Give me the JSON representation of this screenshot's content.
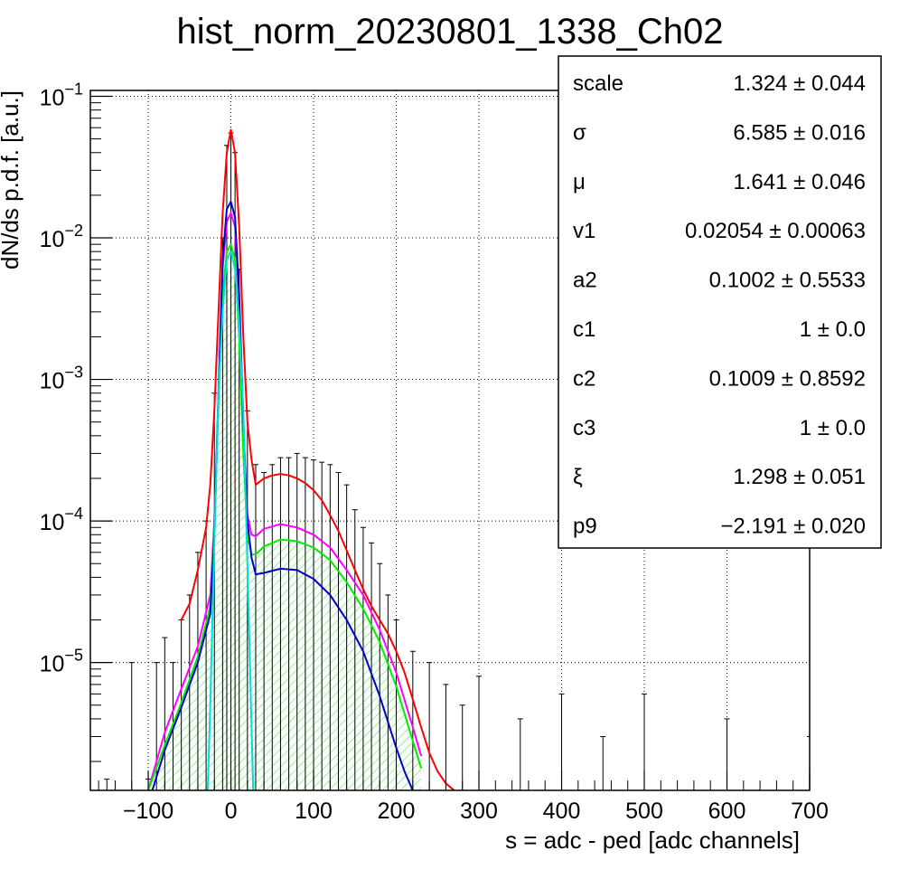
{
  "chart_data": {
    "type": "line",
    "title": "hist_norm_20230801_1338_Ch02",
    "xlabel": "s = adc - ped [adc channels]",
    "ylabel": "dN/ds p.d.f. [a.u.]",
    "xlim": [
      -170,
      700
    ],
    "ylim": [
      1.25e-06,
      0.11
    ],
    "yscale": "log",
    "grid": true,
    "x_ticks": [
      -100,
      0,
      100,
      200,
      300,
      400,
      500,
      600,
      700
    ],
    "x_tick_labels": [
      "−100",
      "0",
      "100",
      "200",
      "300",
      "400",
      "500",
      "600",
      "700"
    ],
    "y_ticks": [
      {
        "value": 0.1,
        "mantissa": "10",
        "exponent": "−1"
      },
      {
        "value": 0.01,
        "mantissa": "10",
        "exponent": "−2"
      },
      {
        "value": 0.001,
        "mantissa": "10",
        "exponent": "−3"
      },
      {
        "value": 0.0001,
        "mantissa": "10",
        "exponent": "−4"
      },
      {
        "value": 1e-05,
        "mantissa": "10",
        "exponent": "−5"
      }
    ],
    "series": [
      {
        "color": "#000000",
        "style": "histogram",
        "x": [
          -150,
          -120,
          -100,
          -90,
          -80,
          -70,
          -60,
          -50,
          -40,
          -30,
          -20,
          -10,
          -5,
          0,
          5,
          10,
          20,
          30,
          40,
          50,
          60,
          70,
          80,
          90,
          100,
          110,
          120,
          130,
          140,
          150,
          160,
          170,
          180,
          190,
          200,
          220,
          240,
          260,
          280,
          300,
          350,
          400,
          450,
          500,
          600,
          700
        ],
        "y": [
          1.5e-06,
          1e-05,
          1.5e-06,
          1e-05,
          1.5e-05,
          1e-05,
          2e-05,
          3e-05,
          6e-05,
          0.0001,
          0.0008,
          0.01,
          0.045,
          0.055,
          0.04,
          0.006,
          0.0006,
          0.00025,
          0.00022,
          0.00025,
          0.00028,
          0.00028,
          0.0003,
          0.00028,
          0.00027,
          0.00026,
          0.00025,
          0.00022,
          0.00018,
          0.00012,
          9e-05,
          7e-05,
          5e-05,
          3e-05,
          2e-05,
          1.2e-05,
          1e-05,
          7e-06,
          5e-06,
          8e-06,
          4e-06,
          6e-06,
          3e-06,
          6e-06,
          4e-06,
          3e-06
        ]
      },
      {
        "color": "#ff0000",
        "style": "line",
        "x": [
          -60,
          -50,
          -40,
          -30,
          -25,
          -20,
          -15,
          -10,
          -5,
          0,
          5,
          10,
          15,
          20,
          25,
          30,
          40,
          50,
          60,
          70,
          80,
          90,
          100,
          110,
          120,
          130,
          140,
          150,
          160,
          170,
          180,
          190,
          200,
          210,
          220,
          230,
          240,
          250,
          260,
          270
        ],
        "y": [
          2e-05,
          2.6e-05,
          4.5e-05,
          9e-05,
          0.00018,
          0.0006,
          0.003,
          0.015,
          0.04,
          0.058,
          0.04,
          0.012,
          0.002,
          0.0005,
          0.00027,
          0.00018,
          0.0002,
          0.00021,
          0.000215,
          0.00021,
          0.0002,
          0.000185,
          0.000165,
          0.00014,
          0.00011,
          8.5e-05,
          6.2e-05,
          4.5e-05,
          3.3e-05,
          2.5e-05,
          2e-05,
          1.6e-05,
          1.2e-05,
          8.5e-06,
          5.5e-06,
          3.5e-06,
          2.3e-06,
          1.7e-06,
          1.4e-06,
          1.2e-06
        ]
      },
      {
        "color": "#ff00ff",
        "style": "line",
        "x": [
          -100,
          -80,
          -60,
          -40,
          -25,
          -20,
          -15,
          -10,
          -5,
          0,
          5,
          10,
          15,
          20,
          25,
          30,
          40,
          60,
          80,
          100,
          120,
          140,
          160,
          180,
          200,
          220,
          230
        ],
        "y": [
          1.2e-06,
          3.2e-06,
          6.5e-06,
          1.3e-05,
          3e-05,
          0.0001,
          0.0008,
          0.006,
          0.013,
          0.015,
          0.012,
          0.0035,
          0.0004,
          0.00011,
          8e-05,
          7.8e-05,
          8.8e-05,
          9.5e-05,
          9e-05,
          8e-05,
          6.5e-05,
          4.5e-05,
          3e-05,
          1.7e-05,
          8.5e-06,
          3.5e-06,
          2.2e-06
        ]
      },
      {
        "color": "#00ee00",
        "style": "line",
        "x": [
          -100,
          -80,
          -60,
          -40,
          -25,
          -20,
          -15,
          -10,
          -5,
          0,
          5,
          10,
          15,
          20,
          25,
          30,
          40,
          60,
          80,
          100,
          120,
          140,
          160,
          180,
          200,
          220,
          230
        ],
        "y": [
          1.1e-06,
          2.6e-06,
          5.2e-06,
          1.1e-05,
          2.5e-05,
          9e-05,
          0.0007,
          0.004,
          0.008,
          0.009,
          0.007,
          0.002,
          0.0003,
          8e-05,
          5.8e-05,
          5.8e-05,
          6.6e-05,
          7.4e-05,
          7.2e-05,
          6.5e-05,
          5.3e-05,
          3.7e-05,
          2.4e-05,
          1.4e-05,
          6.8e-06,
          2.8e-06,
          1.8e-06
        ]
      },
      {
        "color": "#0000cc",
        "style": "line",
        "x": [
          -95,
          -80,
          -60,
          -40,
          -25,
          -20,
          -15,
          -10,
          -5,
          0,
          5,
          10,
          15,
          20,
          25,
          30,
          40,
          60,
          80,
          100,
          120,
          140,
          160,
          180,
          200,
          210,
          220
        ],
        "y": [
          1.2e-06,
          2.4e-06,
          4.8e-06,
          1e-05,
          2.2e-05,
          8e-05,
          0.0008,
          0.007,
          0.016,
          0.018,
          0.014,
          0.004,
          0.0005,
          0.0001,
          5.5e-05,
          4.2e-05,
          4.3e-05,
          4.6e-05,
          4.5e-05,
          3.9e-05,
          3e-05,
          2e-05,
          1.2e-05,
          5.8e-06,
          2.5e-06,
          1.7e-06,
          1.2e-06
        ]
      },
      {
        "color": "#00dddd",
        "style": "line",
        "x": [
          -28,
          -25,
          -20,
          -15,
          -10,
          -5,
          0,
          5,
          10,
          15,
          20,
          25,
          27
        ],
        "y": [
          1.2e-06,
          5e-06,
          7e-05,
          0.0008,
          0.003,
          0.007,
          0.008,
          0.006,
          0.0025,
          0.0006,
          5e-05,
          3.5e-06,
          1.2e-06
        ]
      }
    ]
  },
  "stats": [
    {
      "name": "scale",
      "value": "1.324 ± 0.044"
    },
    {
      "name": "σ",
      "value": "6.585 ± 0.016"
    },
    {
      "name": "μ",
      "value": "1.641 ± 0.046"
    },
    {
      "name": "v1",
      "value": "0.02054 ± 0.00063"
    },
    {
      "name": "a2",
      "value": "0.1002 ± 0.5533"
    },
    {
      "name": "c1",
      "value": "1 ± 0.0"
    },
    {
      "name": "c2",
      "value": "0.1009 ± 0.8592"
    },
    {
      "name": "c3",
      "value": "1 ± 0.0"
    },
    {
      "name": "ξ",
      "value": "1.298 ± 0.051"
    },
    {
      "name": "p9",
      "value": "−2.191 ± 0.020"
    }
  ]
}
